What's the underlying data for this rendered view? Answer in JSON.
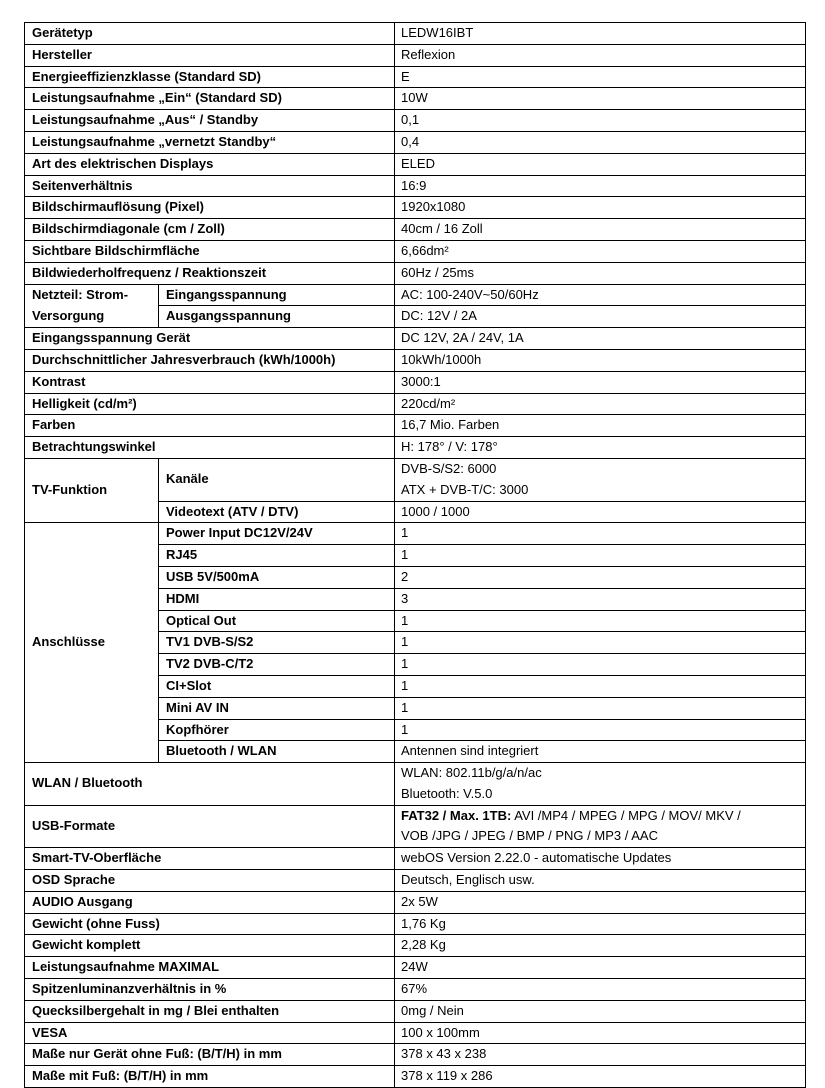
{
  "spec_table": {
    "rows": [
      {
        "label": "Gerätetyp",
        "value": [
          "LEDW16IBT"
        ]
      },
      {
        "label": "Hersteller",
        "value": [
          "Reflexion"
        ]
      },
      {
        "label": "Energieeffizienzklasse (Standard SD)",
        "value": [
          "E"
        ]
      },
      {
        "label": "Leistungsaufnahme „Ein“ (Standard SD)",
        "value": [
          "10W"
        ]
      },
      {
        "label": "Leistungsaufnahme „Aus“ / Standby",
        "value": [
          "0,1"
        ]
      },
      {
        "label": "Leistungsaufnahme „vernetzt Standby“",
        "value": [
          "0,4"
        ]
      },
      {
        "label": "Art des elektrischen Displays",
        "value": [
          "ELED"
        ]
      },
      {
        "label": "Seitenverhältnis",
        "value": [
          "16:9"
        ]
      },
      {
        "label": "Bildschirmauflösung (Pixel)",
        "value": [
          "1920x1080"
        ]
      },
      {
        "label": "Bildschirmdiagonale (cm / Zoll)",
        "value": [
          "40cm / 16 Zoll"
        ]
      },
      {
        "label": "Sichtbare Bildschirmfläche",
        "value": [
          "6,66dm²"
        ]
      },
      {
        "label": "Bildwiederholfrequenz / Reaktionszeit",
        "value": [
          "60Hz / 25ms"
        ]
      },
      {
        "label": "Netzteil: Strom-Versorgung",
        "sub": [
          {
            "label": "Eingangsspannung",
            "value": [
              "AC: 100-240V~50/60Hz"
            ]
          },
          {
            "label": "Ausgangsspannung",
            "value": [
              "DC: 12V / 2A"
            ]
          }
        ]
      },
      {
        "label": "Eingangsspannung Gerät",
        "value": [
          "DC 12V, 2A / 24V, 1A"
        ]
      },
      {
        "label": "Durchschnittlicher Jahresverbrauch (kWh/1000h)",
        "value": [
          "10kWh/1000h"
        ]
      },
      {
        "label": "Kontrast",
        "value": [
          "3000:1"
        ]
      },
      {
        "label": "Helligkeit (cd/m²)",
        "value": [
          "220cd/m²"
        ]
      },
      {
        "label": "Farben",
        "value": [
          "16,7 Mio. Farben"
        ]
      },
      {
        "label": "Betrachtungswinkel",
        "value": [
          "H: 178° / V: 178°"
        ]
      },
      {
        "label": "TV-Funktion",
        "sub": [
          {
            "label": "Kanäle",
            "value": [
              "DVB-S/S2: 6000",
              "ATX + DVB-T/C: 3000"
            ]
          },
          {
            "label": "Videotext (ATV / DTV)",
            "value": [
              "1000 / 1000"
            ]
          }
        ]
      },
      {
        "label": "Anschlüsse",
        "sub": [
          {
            "label": "Power Input DC12V/24V",
            "value": [
              "1"
            ]
          },
          {
            "label": "RJ45",
            "value": [
              "1"
            ]
          },
          {
            "label": "USB 5V/500mA",
            "value": [
              "2"
            ]
          },
          {
            "label": "HDMI",
            "value": [
              "3"
            ]
          },
          {
            "label": "Optical Out",
            "value": [
              "1"
            ]
          },
          {
            "label": "TV1 DVB-S/S2",
            "value": [
              "1"
            ]
          },
          {
            "label": "TV2 DVB-C/T2",
            "value": [
              "1"
            ]
          },
          {
            "label": "CI+Slot",
            "value": [
              "1"
            ]
          },
          {
            "label": "Mini AV IN",
            "value": [
              "1"
            ]
          },
          {
            "label": "Kopfhörer",
            "value": [
              "1"
            ]
          },
          {
            "label": "Bluetooth / WLAN",
            "value": [
              "Antennen sind integriert"
            ]
          }
        ]
      },
      {
        "label": "WLAN / Bluetooth",
        "value": [
          "WLAN: 802.11b/g/a/n/ac",
          "Bluetooth: V.5.0"
        ]
      },
      {
        "label": "USB-Formate",
        "bold_prefix": "FAT32 / Max. 1TB:",
        "value": [
          " AVI /MP4 / MPEG / MPG / MOV/ MKV /",
          "VOB /JPG / JPEG / BMP / PNG / MP3 / AAC"
        ]
      },
      {
        "label": "Smart-TV-Oberfläche",
        "value": [
          "webOS Version 2.22.0 - automatische Updates"
        ]
      },
      {
        "label": "OSD Sprache",
        "value": [
          "Deutsch, Englisch usw."
        ]
      },
      {
        "label": "AUDIO Ausgang",
        "value": [
          "2x 5W"
        ]
      },
      {
        "label": "Gewicht (ohne Fuss)",
        "value": [
          "1,76 Kg"
        ]
      },
      {
        "label": "Gewicht komplett",
        "value": [
          "2,28 Kg"
        ]
      },
      {
        "label": "Leistungsaufnahme MAXIMAL",
        "value": [
          "24W"
        ]
      },
      {
        "label": "Spitzenluminanzverhältnis in %",
        "value": [
          "67%"
        ]
      },
      {
        "label": "Quecksilbergehalt in mg / Blei enthalten",
        "value": [
          "0mg / Nein"
        ]
      },
      {
        "label": "VESA",
        "value": [
          "100 x 100mm"
        ]
      },
      {
        "label": "Maße nur Gerät ohne Fuß: (B/T/H) in mm",
        "value": [
          "378 x 43 x 238"
        ]
      },
      {
        "label": "Maße mit Fuß: (B/T/H) in mm",
        "value": [
          "378 x 119 x 286"
        ]
      }
    ]
  }
}
